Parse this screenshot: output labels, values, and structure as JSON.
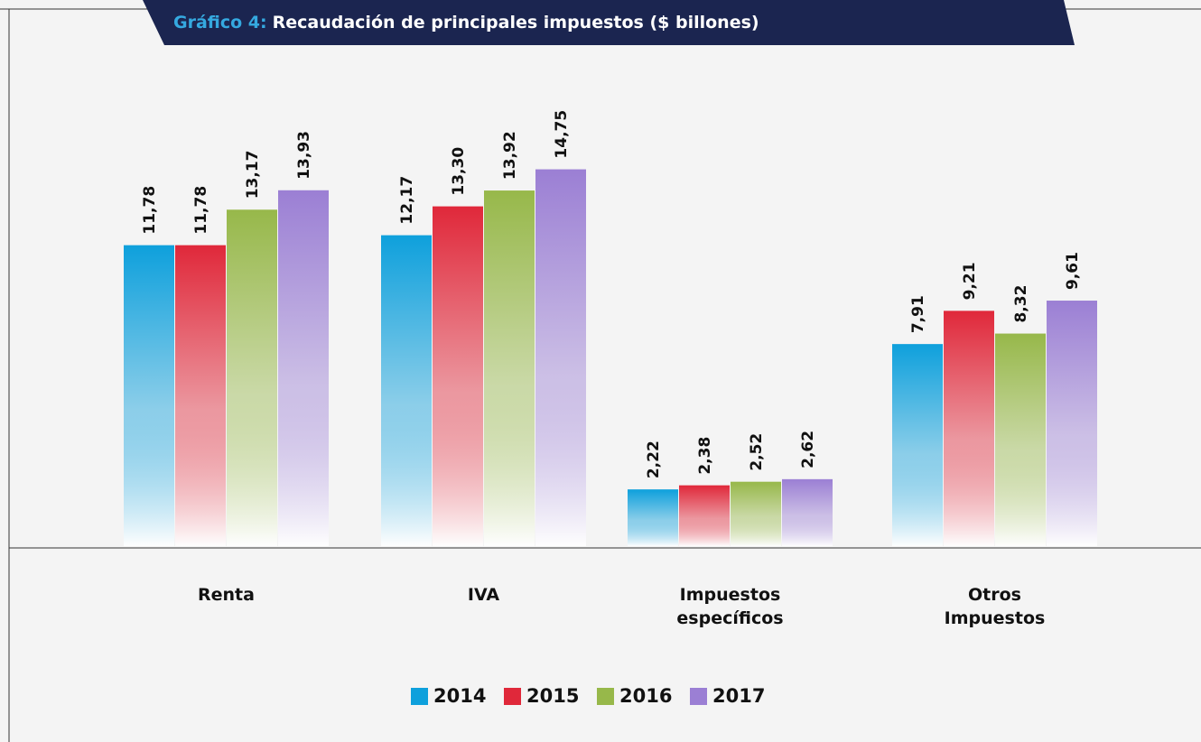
{
  "chart_data": {
    "type": "bar",
    "title_prefix": "Gráfico 4:",
    "title": "Recaudación de principales impuestos ($ billones)",
    "categories": [
      "Renta",
      "IVA",
      "Impuestos específicos",
      "Otros Impuestos"
    ],
    "series": [
      {
        "name": "2014",
        "color": "#0ea0dc",
        "values": [
          11.78,
          12.17,
          2.22,
          7.91
        ],
        "value_labels": [
          "11,78",
          "12,17",
          "2,22",
          "7,91"
        ]
      },
      {
        "name": "2015",
        "color": "#e0283a",
        "values": [
          11.78,
          13.3,
          2.38,
          9.21
        ],
        "value_labels": [
          "11,78",
          "13,30",
          "2,38",
          "9,21"
        ]
      },
      {
        "name": "2016",
        "color": "#97b84a",
        "values": [
          13.17,
          13.92,
          2.52,
          8.32
        ],
        "value_labels": [
          "13,17",
          "13,92",
          "2,52",
          "8,32"
        ]
      },
      {
        "name": "2017",
        "color": "#9b7fd4",
        "values": [
          13.93,
          14.75,
          2.62,
          9.61
        ],
        "value_labels": [
          "13,93",
          "14,75",
          "2,62",
          "9,61"
        ]
      }
    ]
  }
}
